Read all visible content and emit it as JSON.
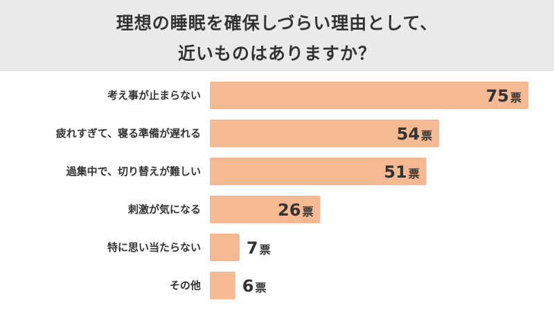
{
  "header": {
    "title_line1": "理想の睡眠を確保しづらい理由として、",
    "title_line2": "近いものはありますか？"
  },
  "chart_data": {
    "type": "bar",
    "orientation": "horizontal",
    "title": "理想の睡眠を確保しづらい理由として、近いものはありますか？",
    "categories": [
      "考え事が止まらない",
      "疲れすぎて、寝る準備が遅れる",
      "過集中で、切り替えが難しい",
      "刺激が気になる",
      "特に思い当たらない",
      "その他"
    ],
    "values": [
      75,
      54,
      51,
      26,
      7,
      6
    ],
    "unit": "票",
    "bar_color": "#f5b994",
    "grid": false,
    "xlim": [
      0,
      75
    ]
  }
}
